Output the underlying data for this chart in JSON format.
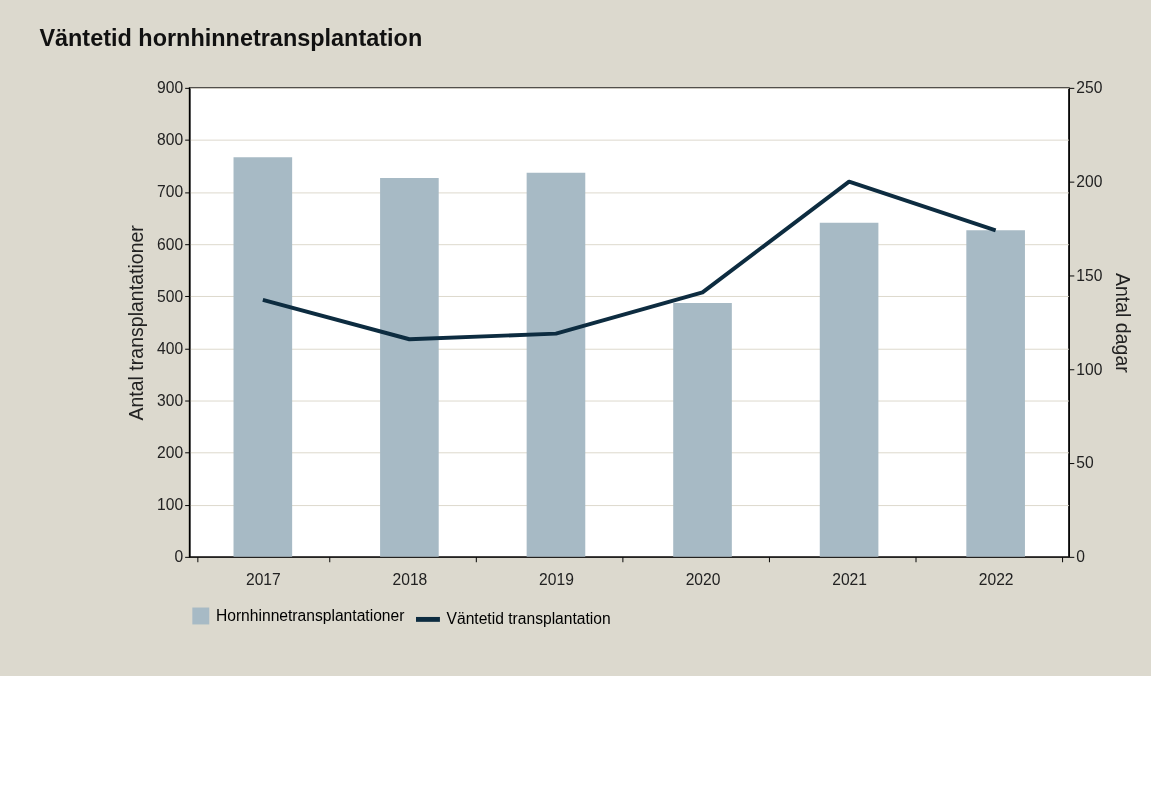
{
  "chart_data": {
    "type": "bar",
    "title": "Väntetid hornhinnetransplantation",
    "ylabel": "Antal transplantationer",
    "y2label": "Antal dagar",
    "categories": [
      "2017",
      "2018",
      "2019",
      "2020",
      "2021",
      "2022"
    ],
    "series": [
      {
        "name": "Hornhinnetransplantationer",
        "color": "#a7bac5",
        "values": [
          767,
          727,
          737,
          487,
          641,
          627
        ]
      },
      {
        "name": "Väntetid transplantation",
        "type": "line",
        "axis": "y2",
        "color": "#0d2c40",
        "values": [
          137,
          116,
          119,
          141,
          200,
          174
        ]
      }
    ],
    "ylim": [
      0,
      900
    ],
    "yticks": [
      0,
      100,
      200,
      300,
      400,
      500,
      600,
      700,
      800,
      900
    ],
    "y2lim": [
      0,
      250
    ],
    "y2ticks": [
      0,
      50,
      100,
      150,
      200,
      250
    ],
    "grid": "y",
    "legend": "bottom",
    "marker": "none",
    "line_style": "solid"
  }
}
